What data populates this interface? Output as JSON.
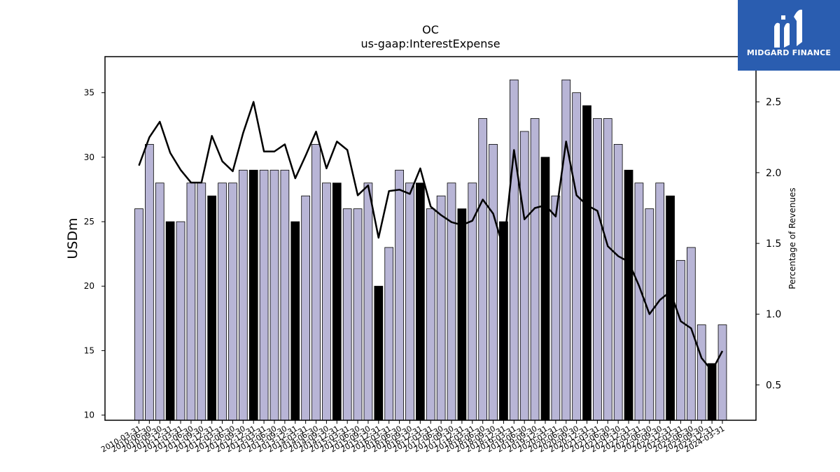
{
  "chart_data": {
    "type": "bar",
    "title": "OC",
    "subtitle": "us-gaap:InterestExpense",
    "ylabel": "USDm",
    "y2label": "Percentage of Revenues",
    "ylim": [
      9.6,
      37.8
    ],
    "y2lim": [
      0.25,
      2.82
    ],
    "yticks": [
      10,
      15,
      20,
      25,
      30,
      35
    ],
    "y2ticks": [
      0.5,
      1.0,
      1.5,
      2.0,
      2.5
    ],
    "ytick_labels": [
      "10",
      "15",
      "20",
      "25",
      "30",
      "35"
    ],
    "y2tick_labels": [
      "0.5",
      "1.0",
      "1.5",
      "2.0",
      "2.5"
    ],
    "grid": false,
    "colors": {
      "bar": "#b8b5d6",
      "bar_highlight": "#000000",
      "line": "#000000"
    },
    "categories": [
      "2010-03-31",
      "2010-06-30",
      "2010-09-30",
      "2010-12-31",
      "2011-03-31",
      "2011-06-30",
      "2011-09-30",
      "2011-12-31",
      "2012-03-31",
      "2012-06-30",
      "2012-09-30",
      "2012-12-31",
      "2013-03-31",
      "2013-06-30",
      "2013-09-30",
      "2013-12-31",
      "2014-03-31",
      "2014-06-30",
      "2014-09-30",
      "2014-12-31",
      "2015-03-31",
      "2015-06-30",
      "2015-09-30",
      "2015-12-31",
      "2016-03-31",
      "2016-06-30",
      "2016-09-30",
      "2016-12-31",
      "2017-03-31",
      "2017-06-30",
      "2017-09-30",
      "2017-12-31",
      "2018-03-31",
      "2018-06-30",
      "2018-09-30",
      "2018-12-31",
      "2019-03-31",
      "2019-06-30",
      "2019-09-30",
      "2019-12-31",
      "2020-03-31",
      "2020-06-30",
      "2020-09-30",
      "2020-12-31",
      "2021-03-31",
      "2021-06-30",
      "2021-09-30",
      "2021-12-31",
      "2022-03-31",
      "2022-06-30",
      "2022-09-30",
      "2022-12-31",
      "2023-03-31",
      "2023-06-30",
      "2023-09-30",
      "2023-12-31",
      "2024-03-31"
    ],
    "series": [
      {
        "type": "bar",
        "axis": "left",
        "values": [
          26,
          31,
          28,
          25,
          25,
          28,
          28,
          27,
          28,
          28,
          29,
          29,
          29,
          29,
          29,
          25,
          27,
          31,
          28,
          28,
          26,
          26,
          28,
          20,
          23,
          29,
          28,
          28,
          26,
          27,
          28,
          26,
          28,
          33,
          31,
          25,
          36,
          32,
          33,
          30,
          27,
          36,
          35,
          34,
          33,
          33,
          31,
          29,
          28,
          26,
          28,
          27,
          22,
          23,
          17,
          14,
          17
        ],
        "highlight": [
          false,
          false,
          false,
          true,
          false,
          false,
          false,
          true,
          false,
          false,
          false,
          true,
          false,
          false,
          false,
          true,
          false,
          false,
          false,
          true,
          false,
          false,
          false,
          true,
          false,
          false,
          false,
          true,
          false,
          false,
          false,
          true,
          false,
          false,
          false,
          true,
          false,
          false,
          false,
          true,
          false,
          false,
          false,
          true,
          false,
          false,
          false,
          true,
          false,
          false,
          false,
          true,
          false,
          false,
          false,
          true,
          false
        ]
      },
      {
        "type": "line",
        "axis": "right",
        "values": [
          2.05,
          2.25,
          2.36,
          2.14,
          2.02,
          1.93,
          1.93,
          2.26,
          2.08,
          2.01,
          2.28,
          2.5,
          2.15,
          2.15,
          2.2,
          1.96,
          2.12,
          2.29,
          2.03,
          2.22,
          2.16,
          1.84,
          1.91,
          1.54,
          1.87,
          1.88,
          1.85,
          2.03,
          1.76,
          1.7,
          1.65,
          1.63,
          1.66,
          1.81,
          1.71,
          1.46,
          2.16,
          1.67,
          1.75,
          1.77,
          1.69,
          2.22,
          1.84,
          1.77,
          1.73,
          1.48,
          1.41,
          1.37,
          1.2,
          1.0,
          1.1,
          1.16,
          0.95,
          0.9,
          0.69,
          0.6,
          0.74
        ]
      }
    ]
  },
  "logo": {
    "text": "MIDGARD FINANCE"
  }
}
